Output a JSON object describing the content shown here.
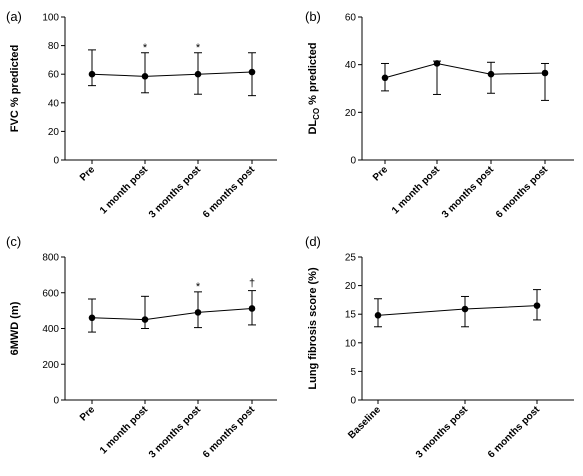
{
  "chart_data": [
    {
      "type": "line",
      "panel_label": "(a)",
      "ylabel": "FVC % predicted",
      "ylim": [
        0,
        100
      ],
      "yticks": [
        0,
        20,
        40,
        60,
        80,
        100
      ],
      "categories": [
        "Pre",
        "1 month post",
        "3 months post",
        "6 months post"
      ],
      "series": [
        {
          "values": [
            60,
            58.5,
            60,
            61.5
          ],
          "err_upper": [
            77,
            75,
            75,
            75
          ],
          "err_lower": [
            52,
            47,
            46,
            45
          ]
        }
      ],
      "annotations": [
        "",
        "*",
        "*",
        ""
      ]
    },
    {
      "type": "line",
      "panel_label": "(b)",
      "ylabel": "DLCO % predicted",
      "ylabel_main": "DL",
      "ylabel_sub": "CO",
      "ylabel_rest": " % predicted",
      "ylim": [
        0,
        60
      ],
      "yticks": [
        0,
        20,
        40,
        60
      ],
      "categories": [
        "Pre",
        "1 month post",
        "3 months post",
        "6 months post"
      ],
      "series": [
        {
          "values": [
            34.5,
            40.5,
            36,
            36.5
          ],
          "err_upper": [
            40.5,
            41.5,
            41,
            40.5
          ],
          "err_lower": [
            29,
            27.5,
            28,
            25
          ]
        }
      ],
      "annotations": [
        "",
        "",
        "",
        ""
      ]
    },
    {
      "type": "line",
      "panel_label": "(c)",
      "ylabel": "6MWD (m)",
      "ylim": [
        0,
        800
      ],
      "yticks": [
        0,
        200,
        400,
        600,
        800
      ],
      "categories": [
        "Pre",
        "1 month post",
        "3 months post",
        "6 months post"
      ],
      "series": [
        {
          "values": [
            460,
            450,
            490,
            512
          ],
          "err_upper": [
            565,
            580,
            605,
            612
          ],
          "err_lower": [
            380,
            400,
            405,
            420
          ]
        }
      ],
      "annotations": [
        "",
        "",
        "*",
        "†"
      ]
    },
    {
      "type": "line",
      "panel_label": "(d)",
      "ylabel": "Lung fibrosis score (%)",
      "ylim": [
        0,
        25
      ],
      "yticks": [
        0,
        5,
        10,
        15,
        20,
        25
      ],
      "categories": [
        "Baseline",
        "3 months post",
        "6 months post"
      ],
      "series": [
        {
          "values": [
            14.8,
            15.9,
            16.5
          ],
          "err_upper": [
            17.7,
            18.1,
            19.3
          ],
          "err_lower": [
            12.8,
            12.8,
            14
          ]
        }
      ],
      "annotations": [
        "",
        "",
        ""
      ]
    }
  ]
}
